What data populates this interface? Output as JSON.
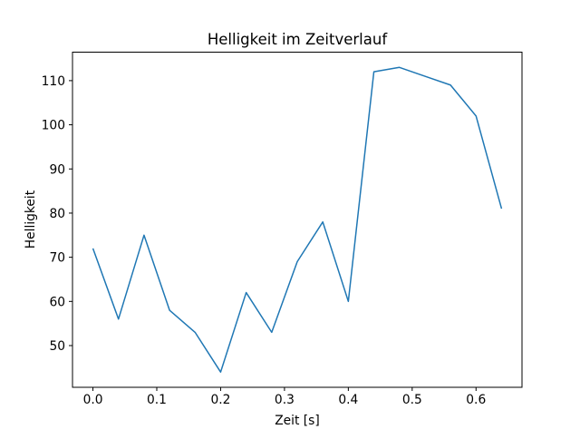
{
  "chart_data": {
    "type": "line",
    "title": "Helligkeit im Zeitverlauf",
    "xlabel": "Zeit [s]",
    "ylabel": "Helligkeit",
    "x": [
      0.0,
      0.04,
      0.08,
      0.12,
      0.16,
      0.2,
      0.24,
      0.28,
      0.32,
      0.36,
      0.4,
      0.44,
      0.48,
      0.52,
      0.56,
      0.6,
      0.64
    ],
    "y": [
      72,
      56,
      75,
      58,
      53,
      44,
      62,
      53,
      69,
      78,
      60,
      112,
      113,
      111,
      109,
      102,
      81
    ],
    "xticks": {
      "values": [
        0.0,
        0.1,
        0.2,
        0.3,
        0.4,
        0.5,
        0.6
      ],
      "labels": [
        "0.0",
        "0.1",
        "0.2",
        "0.3",
        "0.4",
        "0.5",
        "0.6"
      ]
    },
    "yticks": {
      "values": [
        50,
        60,
        70,
        80,
        90,
        100,
        110
      ],
      "labels": [
        "50",
        "60",
        "70",
        "80",
        "90",
        "100",
        "110"
      ]
    },
    "xlim": [
      -0.032,
      0.672
    ],
    "ylim": [
      40.55,
      116.45
    ],
    "line_color": "#1f77b4",
    "line_width": 1.5,
    "spine_color": "#000000",
    "background": "#ffffff",
    "grid": false,
    "legend": null
  }
}
